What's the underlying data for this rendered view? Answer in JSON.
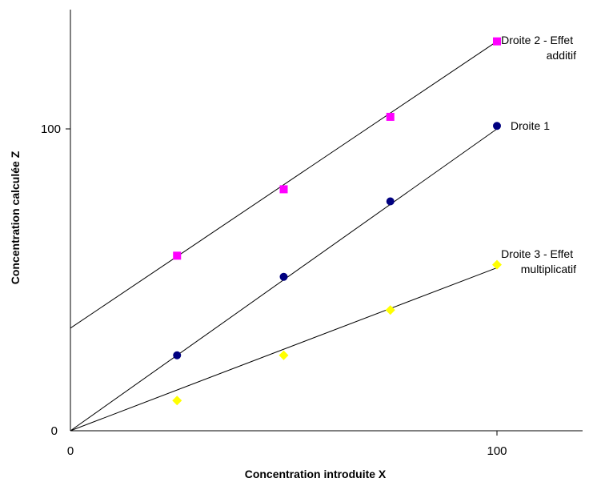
{
  "chart_data": {
    "type": "scatter",
    "xlabel": "Concentration introduite X",
    "ylabel": "Concentration calculée Z",
    "xlim": [
      0,
      120
    ],
    "ylim": [
      0,
      140
    ],
    "x_ticks": [
      "0",
      "100"
    ],
    "y_ticks": [
      "0",
      "100"
    ],
    "grid": false,
    "legend": "none",
    "series": [
      {
        "name": "Droite 2 - Effet additif",
        "label_lines": [
          "Droite 2 - Effet",
          "additif"
        ],
        "marker": "square",
        "color": "#ff00ff",
        "x": [
          25,
          50,
          75,
          100
        ],
        "y": [
          58,
          80,
          104,
          129
        ],
        "fit": {
          "intercept": 34,
          "slope": 0.95
        }
      },
      {
        "name": "Droite 1",
        "label_lines": [
          "Droite 1"
        ],
        "marker": "circle",
        "color": "#000080",
        "x": [
          25,
          50,
          75,
          100
        ],
        "y": [
          25,
          51,
          76,
          101
        ],
        "fit": {
          "intercept": 0,
          "slope": 1.0
        }
      },
      {
        "name": "Droite 3 - Effet multiplicatif",
        "label_lines": [
          "Droite 3 - Effet",
          "multiplicatif"
        ],
        "marker": "diamond",
        "color": "#ffff00",
        "x": [
          25,
          50,
          75,
          100
        ],
        "y": [
          10,
          25,
          40,
          55
        ],
        "fit": {
          "intercept": 0,
          "slope": 0.54
        }
      }
    ]
  }
}
